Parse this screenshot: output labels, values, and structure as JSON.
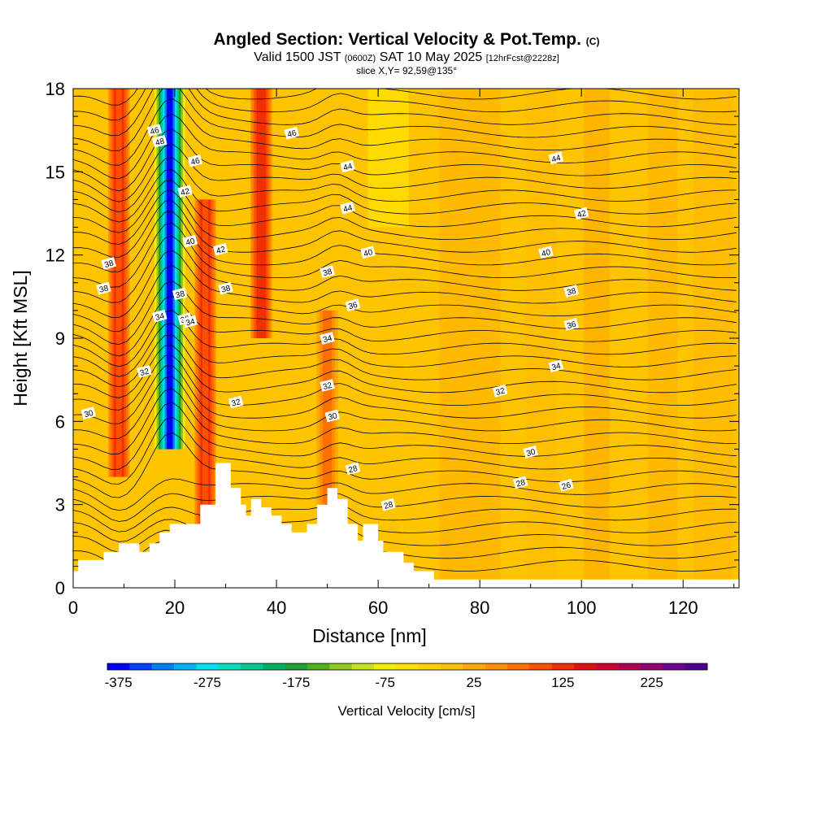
{
  "header": {
    "title_main": "Angled Section: Vertical Velocity & Pot.Temp.",
    "title_unit": "(C)",
    "valid_prefix": "Valid 1500 JST",
    "valid_utc": "(0600Z)",
    "valid_date": "SAT 10 May 2025",
    "forecast_tag": "[12hrFcst@2228z]",
    "slice": "slice X,Y= 92,59@135°"
  },
  "chart_data": {
    "type": "heatmap",
    "title": "Angled Section: Vertical Velocity & Pot.Temp. (C)",
    "xlabel": "Distance [nm]",
    "ylabel": "Height [Kft MSL]",
    "xlim": [
      0,
      131
    ],
    "ylim": [
      0,
      18
    ],
    "x_ticks": [
      "0",
      "20",
      "40",
      "60",
      "80",
      "100",
      "120"
    ],
    "y_ticks": [
      "0",
      "3",
      "6",
      "9",
      "12",
      "15",
      "18"
    ],
    "field": "Vertical Velocity [cm/s]",
    "colorbar": {
      "title": "Vertical Velocity [cm/s]",
      "tick_labels": [
        "-375",
        "-275",
        "-175",
        "-75",
        "25",
        "125",
        "225"
      ],
      "colors": [
        "#0000ff",
        "#0040ff",
        "#0080f0",
        "#00b0f0",
        "#00e0f0",
        "#00e0c0",
        "#00c890",
        "#00b060",
        "#20a030",
        "#50b020",
        "#90c820",
        "#c8e020",
        "#f0f000",
        "#ffe000",
        "#ffd000",
        "#ffc000",
        "#ffa800",
        "#ff9000",
        "#ff7000",
        "#ff5000",
        "#f03000",
        "#e01010",
        "#d00030",
        "#b00050",
        "#900070",
        "#700090",
        "#50008c"
      ]
    },
    "velocity_features": [
      {
        "x": 9,
        "from": 4,
        "to": 18,
        "value": 105
      },
      {
        "x": 19,
        "from": 5,
        "to": 18,
        "value": -375
      },
      {
        "x": 26,
        "from": 2,
        "to": 14,
        "value": 115
      },
      {
        "x": 37,
        "from": 9,
        "to": 18,
        "value": 135
      },
      {
        "x": 50,
        "from": 3,
        "to": 10,
        "value": 75
      }
    ],
    "contour_field": "Potential Temperature (C)",
    "contour_labels": [
      "48",
      "46",
      "46",
      "46",
      "44",
      "44",
      "44",
      "42",
      "42",
      "42",
      "40",
      "40",
      "40",
      "38",
      "38",
      "38",
      "38",
      "38",
      "38",
      "36",
      "36",
      "36",
      "34",
      "34",
      "34",
      "34",
      "32",
      "32",
      "32",
      "32",
      "30",
      "30",
      "30",
      "28",
      "28",
      "28",
      "26"
    ],
    "terrain_profile": [
      [
        0,
        0.6
      ],
      [
        1,
        0.6
      ],
      [
        1,
        1
      ],
      [
        6,
        1
      ],
      [
        6,
        1.3
      ],
      [
        9,
        1.3
      ],
      [
        9,
        1.6
      ],
      [
        13,
        1.6
      ],
      [
        13,
        1.3
      ],
      [
        15,
        1.3
      ],
      [
        15,
        1.6
      ],
      [
        17,
        1.6
      ],
      [
        17,
        2.0
      ],
      [
        19,
        2.0
      ],
      [
        19,
        2.3
      ],
      [
        25,
        2.3
      ],
      [
        25,
        3.0
      ],
      [
        28,
        3.0
      ],
      [
        28,
        4.5
      ],
      [
        31,
        4.5
      ],
      [
        31,
        3.6
      ],
      [
        33,
        3.6
      ],
      [
        33,
        3.0
      ],
      [
        34,
        3.0
      ],
      [
        34,
        2.6
      ],
      [
        35,
        2.6
      ],
      [
        35,
        3.2
      ],
      [
        37,
        3.2
      ],
      [
        37,
        2.9
      ],
      [
        39,
        2.9
      ],
      [
        39,
        2.6
      ],
      [
        41,
        2.6
      ],
      [
        41,
        2.3
      ],
      [
        43,
        2.3
      ],
      [
        43,
        2.0
      ],
      [
        46,
        2.0
      ],
      [
        46,
        2.3
      ],
      [
        48,
        2.3
      ],
      [
        48,
        3.0
      ],
      [
        50,
        3.0
      ],
      [
        50,
        3.6
      ],
      [
        52,
        3.6
      ],
      [
        52,
        3.2
      ],
      [
        54,
        3.2
      ],
      [
        54,
        2.3
      ],
      [
        56,
        2.3
      ],
      [
        56,
        1.7
      ],
      [
        57,
        1.7
      ],
      [
        57,
        2.3
      ],
      [
        60,
        2.3
      ],
      [
        60,
        1.7
      ],
      [
        61,
        1.7
      ],
      [
        61,
        1.3
      ],
      [
        65,
        1.3
      ],
      [
        65,
        0.9
      ],
      [
        67,
        0.9
      ],
      [
        67,
        0.6
      ],
      [
        71,
        0.6
      ],
      [
        71,
        0.3
      ],
      [
        131,
        0.3
      ]
    ]
  }
}
